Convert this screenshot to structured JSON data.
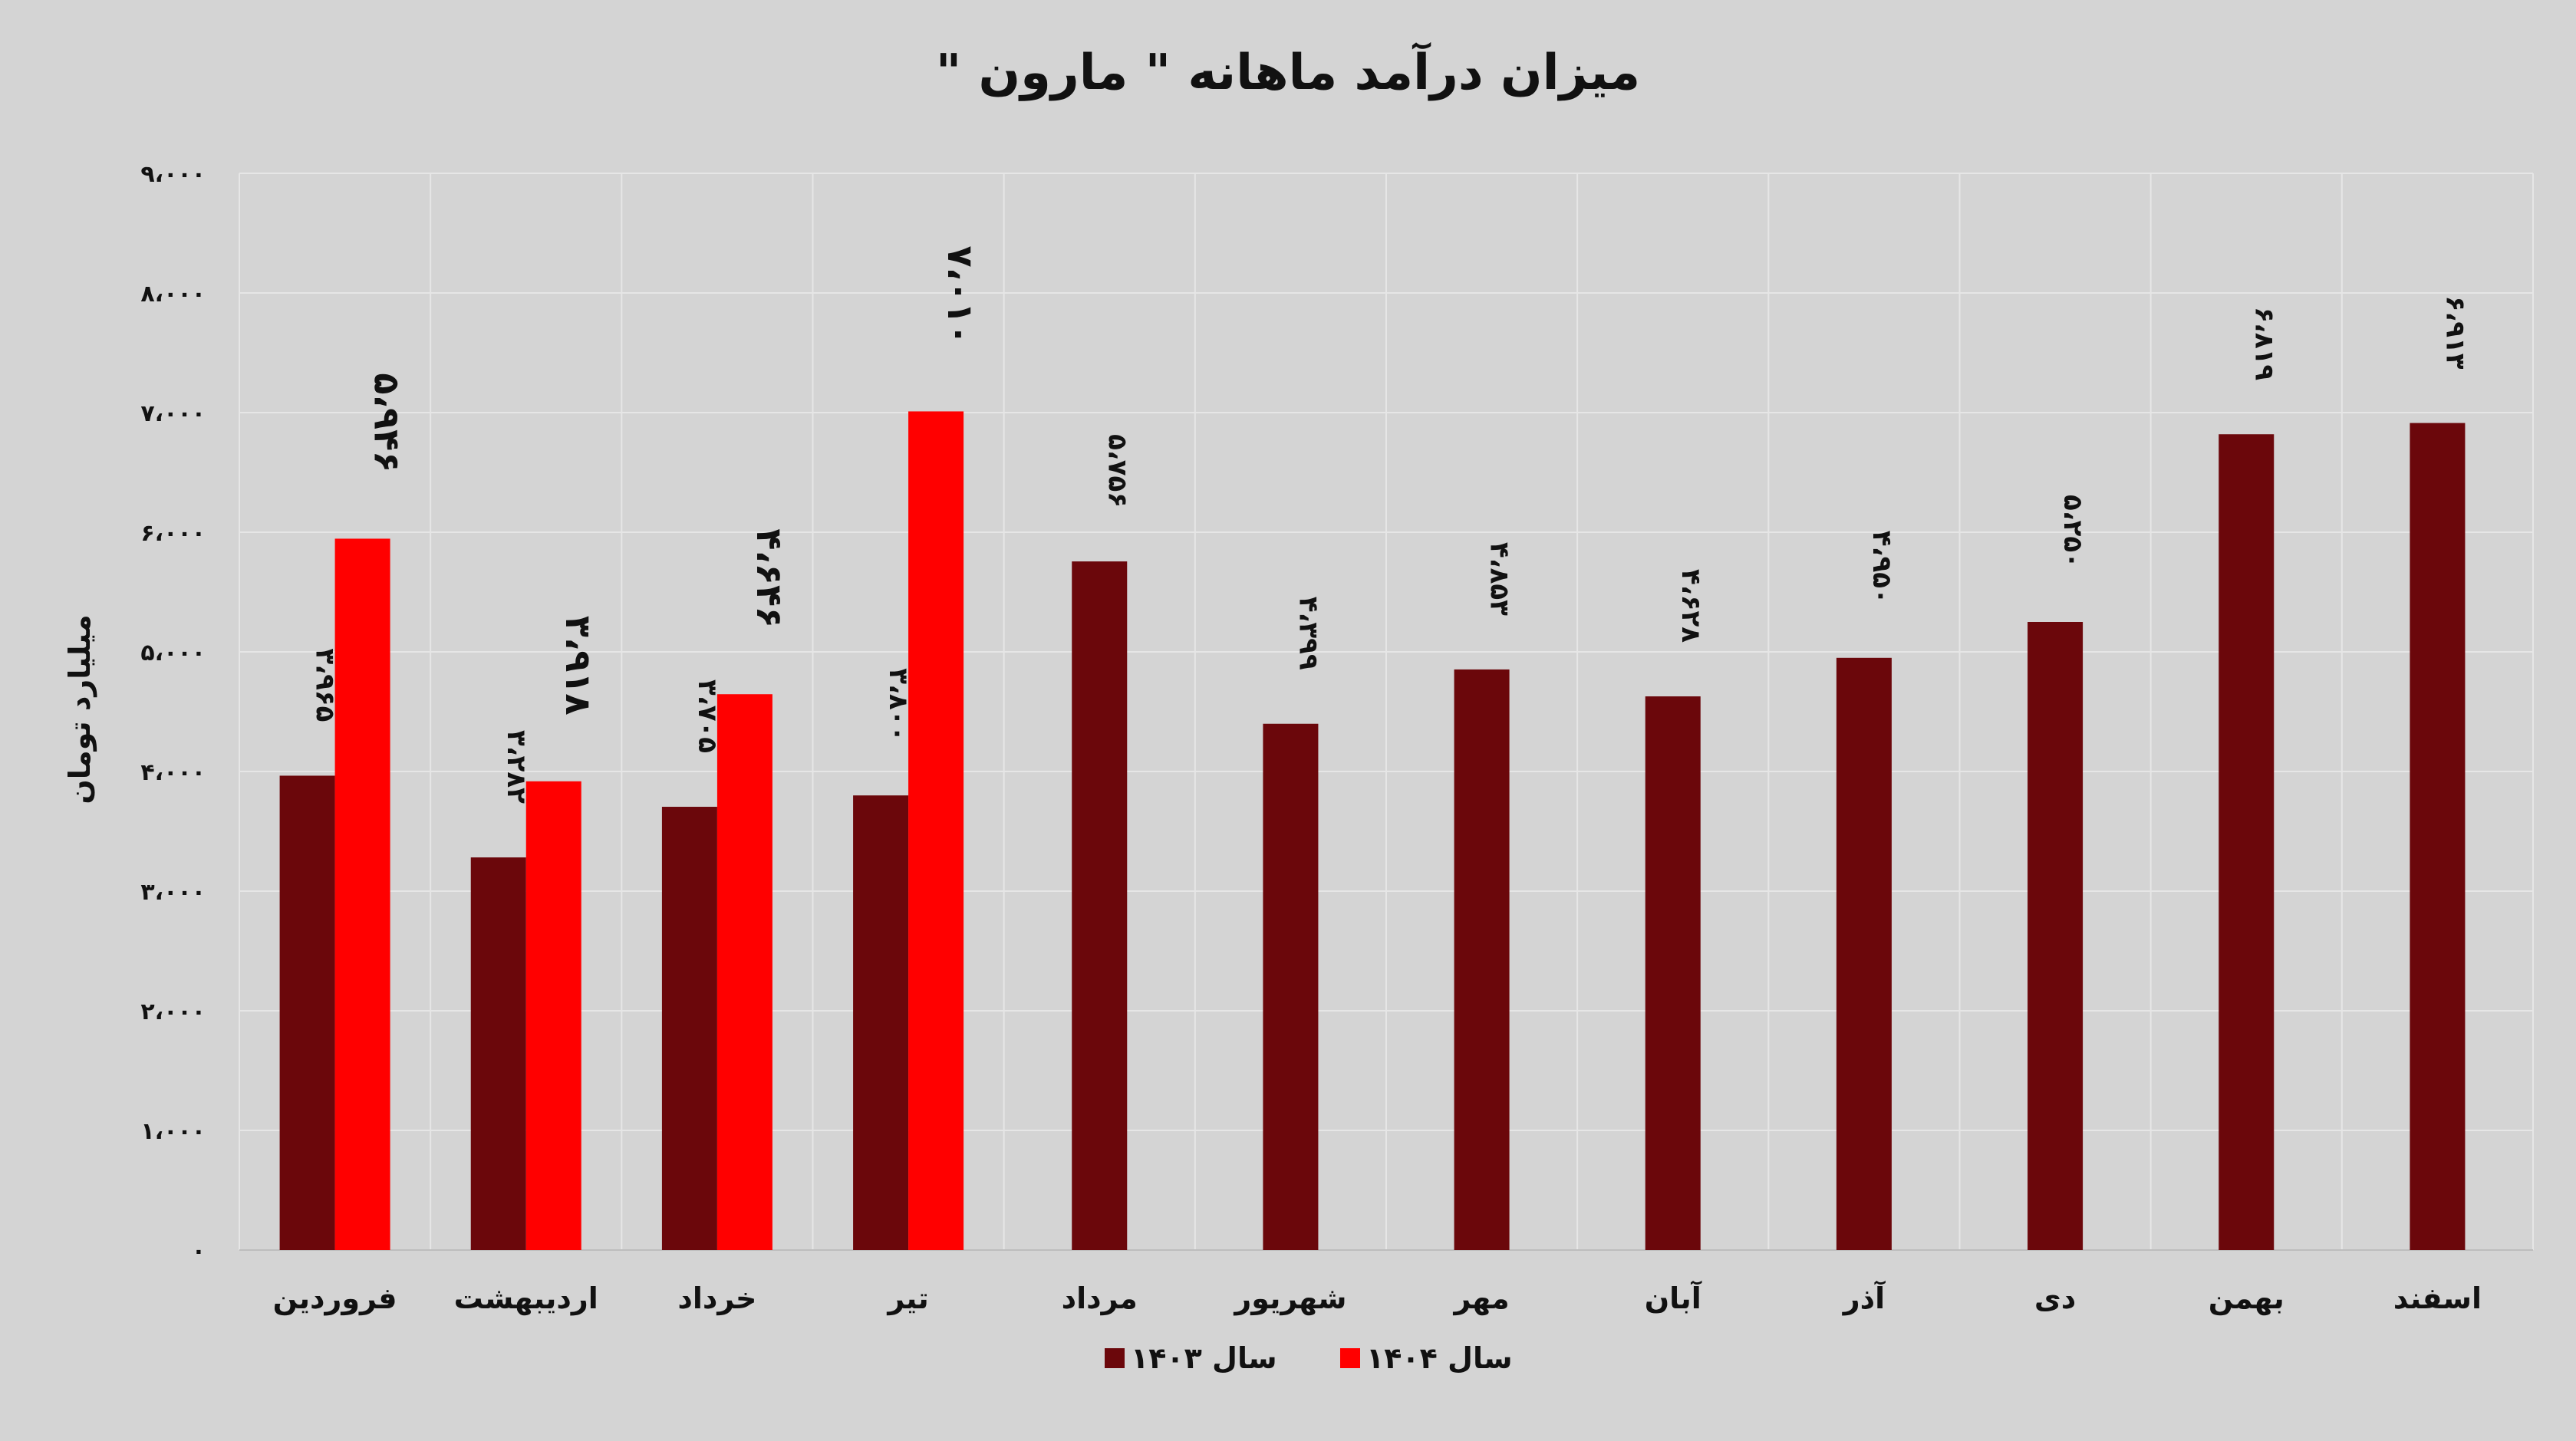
{
  "chart_data": {
    "type": "bar",
    "title": "میزان درآمد ماهانه \" مارون \"",
    "ylabel": "میلیارد تومان",
    "xlabel": "",
    "ylim": [
      0,
      9000
    ],
    "ytick_values": [
      0,
      1000,
      2000,
      3000,
      4000,
      5000,
      6000,
      7000,
      8000,
      9000
    ],
    "ytick_labels": [
      "۰",
      "۱،۰۰۰",
      "۲،۰۰۰",
      "۳،۰۰۰",
      "۴،۰۰۰",
      "۵،۰۰۰",
      "۶،۰۰۰",
      "۷،۰۰۰",
      "۸،۰۰۰",
      "۹،۰۰۰"
    ],
    "categories": [
      "فروردین",
      "اردیبهشت",
      "خرداد",
      "تیر",
      "مرداد",
      "شهریور",
      "مهر",
      "آبان",
      "آذر",
      "دی",
      "بهمن",
      "اسفند"
    ],
    "series": [
      {
        "name": "سال ۱۴۰۳",
        "color": "#6b070b",
        "values": [
          3965,
          3282,
          3705,
          3800,
          5756,
          4399,
          4853,
          4628,
          4950,
          5250,
          6819,
          6913
        ],
        "labels": [
          "۳،۹۶۵",
          "۳،۲۸۲",
          "۳،۷۰۵",
          "۳،۸۰۰",
          "۵،۷۵۶",
          "۴،۳۹۹",
          "۴،۸۵۳",
          "۴،۶۲۸",
          "۴،۹۵۰",
          "۵،۲۵۰",
          "۶،۸۱۹",
          "۶،۹۱۳"
        ]
      },
      {
        "name": "سال ۱۴۰۴",
        "color": "#ff0000",
        "values": [
          5946,
          3918,
          4646,
          7010,
          null,
          null,
          null,
          null,
          null,
          null,
          null,
          null
        ],
        "labels": [
          "۵،۹۴۶",
          "۳،۹۱۸",
          "۴،۶۴۶",
          "۷،۰۱۰",
          "",
          "",
          "",
          "",
          "",
          "",
          "",
          ""
        ]
      }
    ],
    "grid": true,
    "legend_position": "bottom"
  }
}
